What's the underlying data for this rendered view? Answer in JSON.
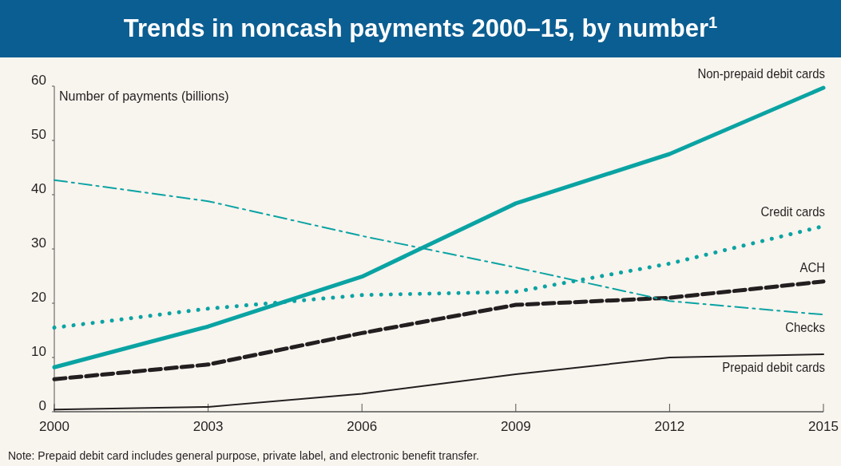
{
  "chart_data": {
    "type": "line",
    "title": "Trends in noncash payments 2000–15, by number$^{1}$",
    "ylabel": "Number of payments (billions)",
    "x": [
      2000,
      2003,
      2006,
      2009,
      2012,
      2015
    ],
    "xlim": [
      2000,
      2015
    ],
    "xticks": [
      2000,
      2003,
      2006,
      2009,
      2012,
      2015
    ],
    "ylim": [
      0,
      60
    ],
    "yticks": [
      0,
      10,
      20,
      30,
      40,
      50,
      60
    ],
    "series": [
      {
        "name": "Non-prepaid debit cards",
        "color": "#0aa3a3",
        "line_style": "solid",
        "values": [
          8.2,
          15.7,
          24.9,
          38.4,
          47.5,
          59.7
        ]
      },
      {
        "name": "Credit cards",
        "color": "#0aa3a3",
        "line_style": "dotted",
        "values": [
          15.5,
          19.0,
          21.5,
          22.1,
          27.3,
          34.2
        ]
      },
      {
        "name": "ACH",
        "color": "#231f20",
        "line_style": "dashed",
        "values": [
          6.0,
          8.7,
          14.5,
          19.7,
          21.0,
          24.0
        ]
      },
      {
        "name": "Checks",
        "color": "#0aa3a3",
        "line_style": "dashed",
        "values": [
          42.7,
          38.8,
          32.4,
          26.6,
          20.4,
          17.9
        ]
      },
      {
        "name": "Prepaid debit cards",
        "color": "#231f20",
        "line_style": "solid",
        "values": [
          0.4,
          0.9,
          3.3,
          6.9,
          10.0,
          10.6
        ]
      }
    ],
    "annotations": [
      "Note: Prepaid debit card includes general purpose, private label, and electronic benefit transfer."
    ]
  }
}
